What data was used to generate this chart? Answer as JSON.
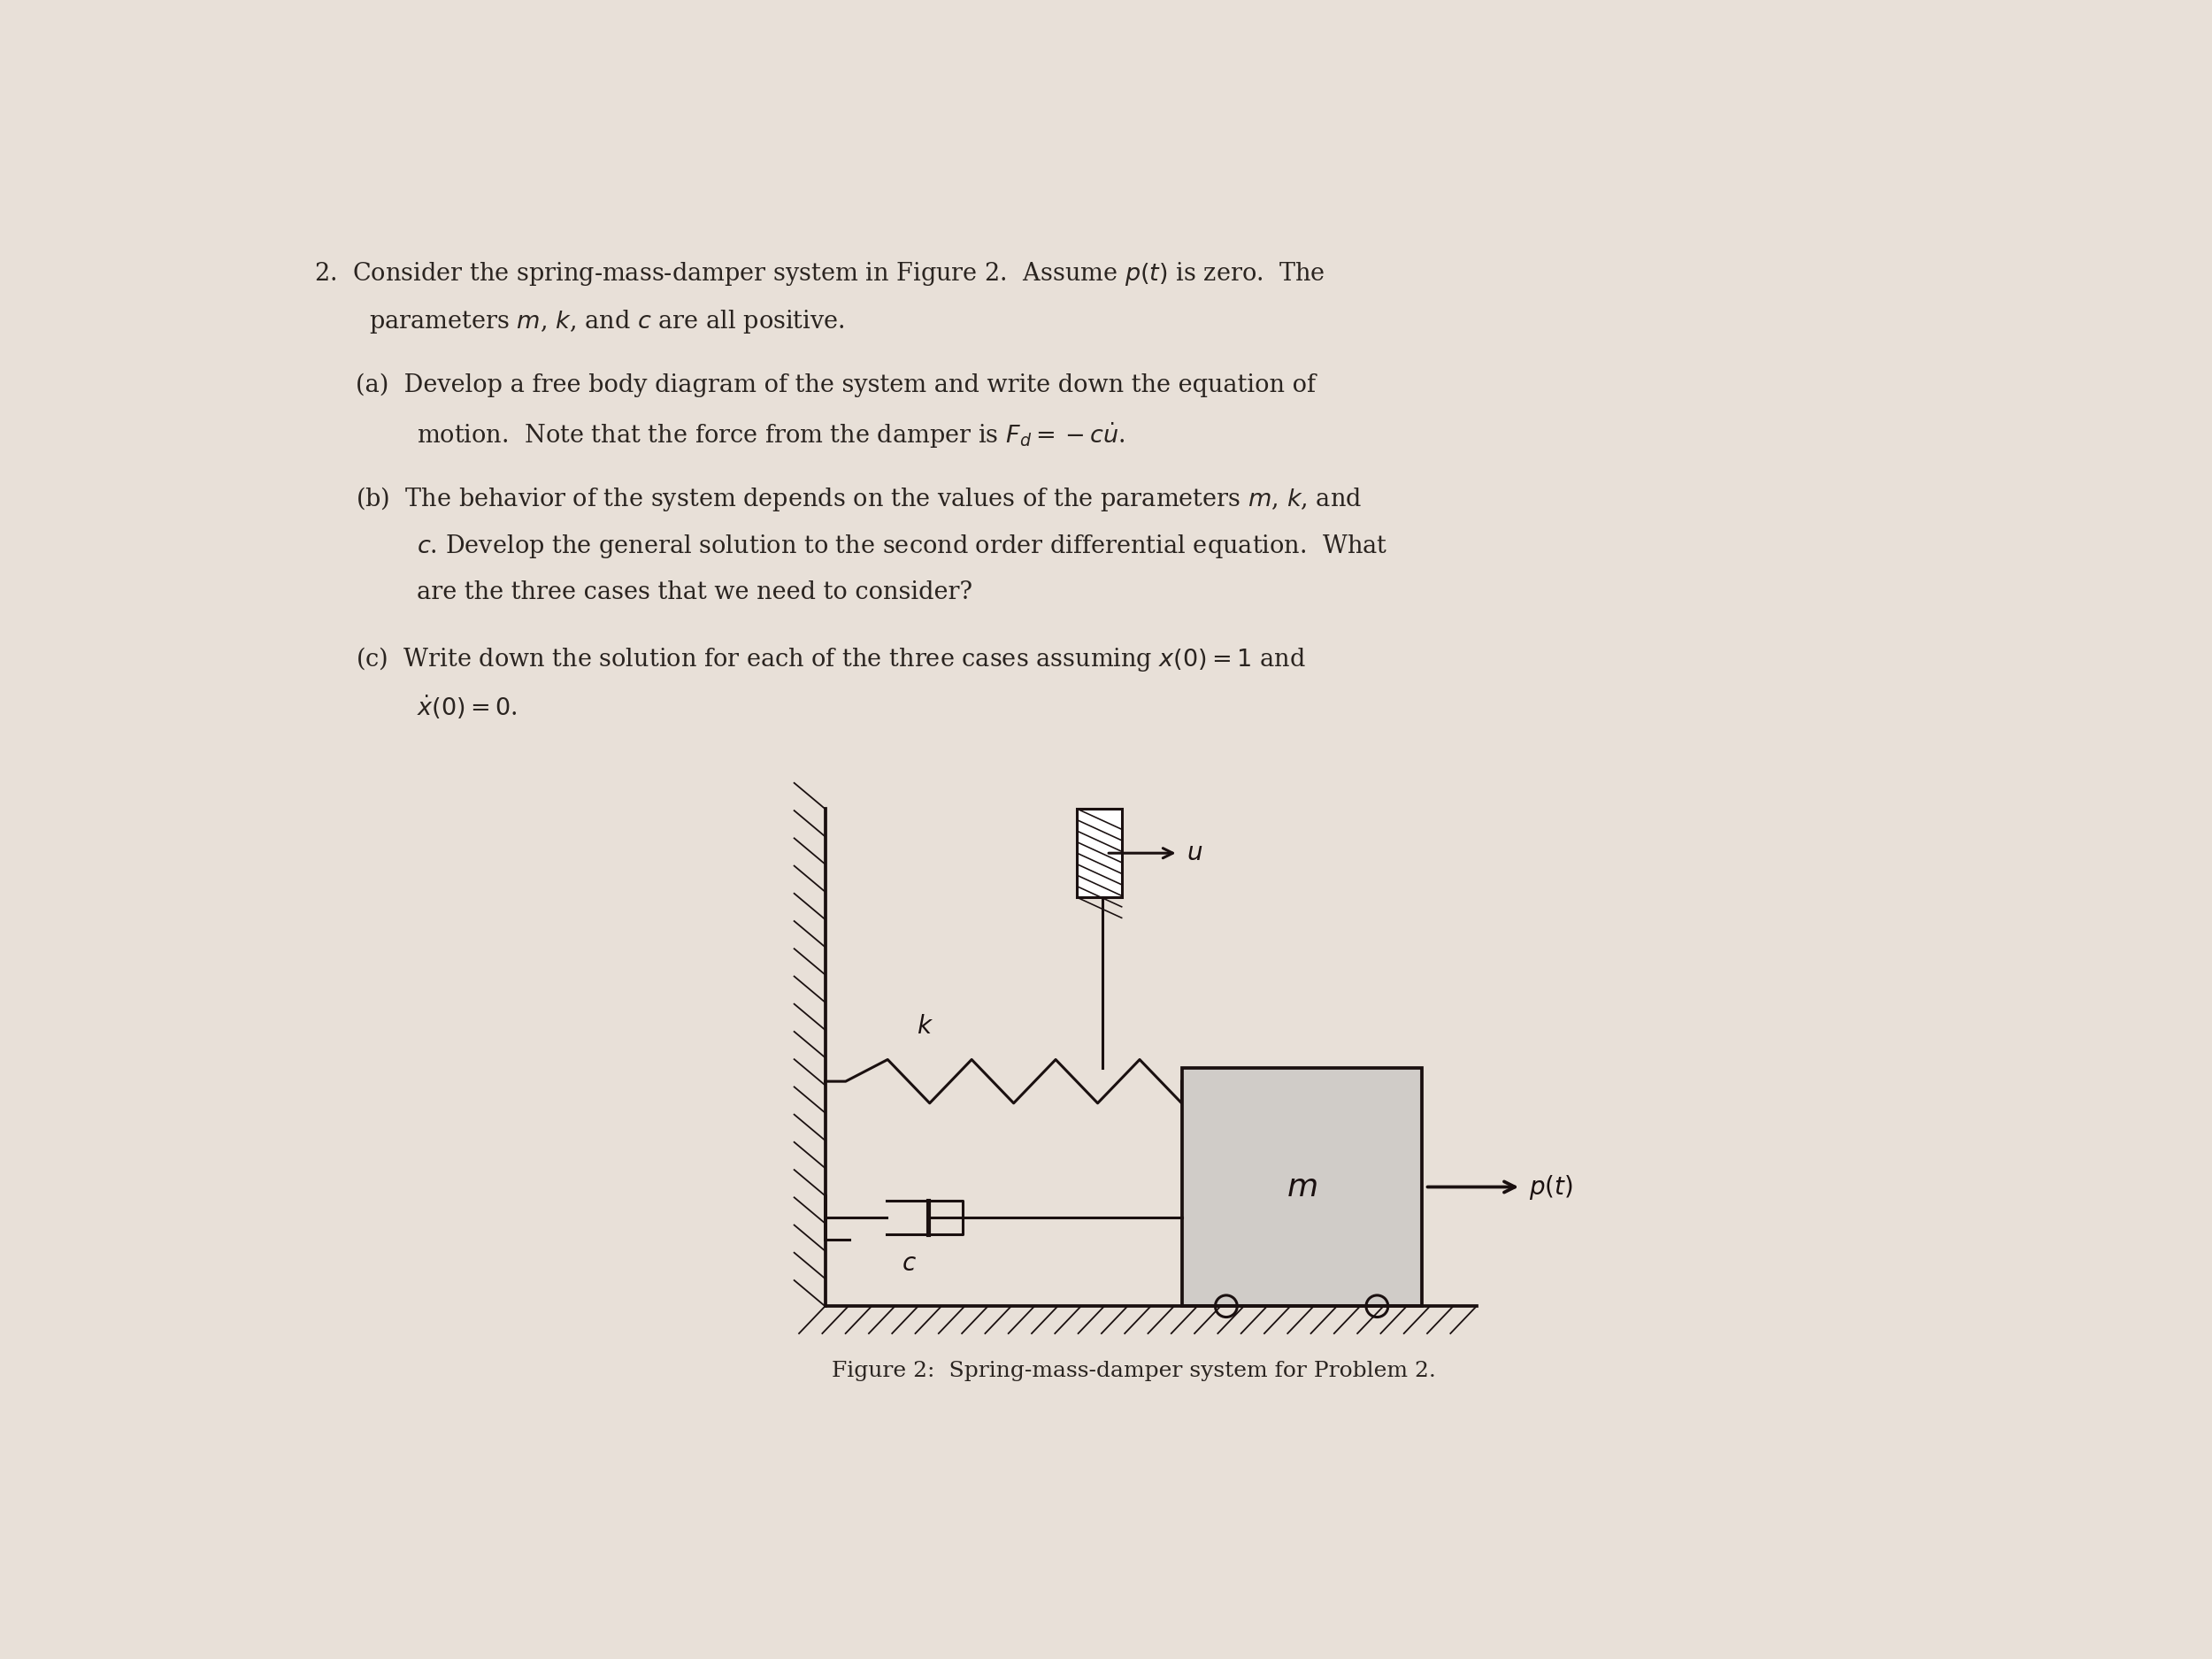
{
  "bg_color": "#e8e0d8",
  "text_color": "#2a2420",
  "fig_caption": "Figure 2:  Spring-mass-damper system for Problem 2.",
  "line_color": "#1a1010",
  "box_face_color": "#d0ccc8",
  "hatch_face_color": "#ffffff"
}
